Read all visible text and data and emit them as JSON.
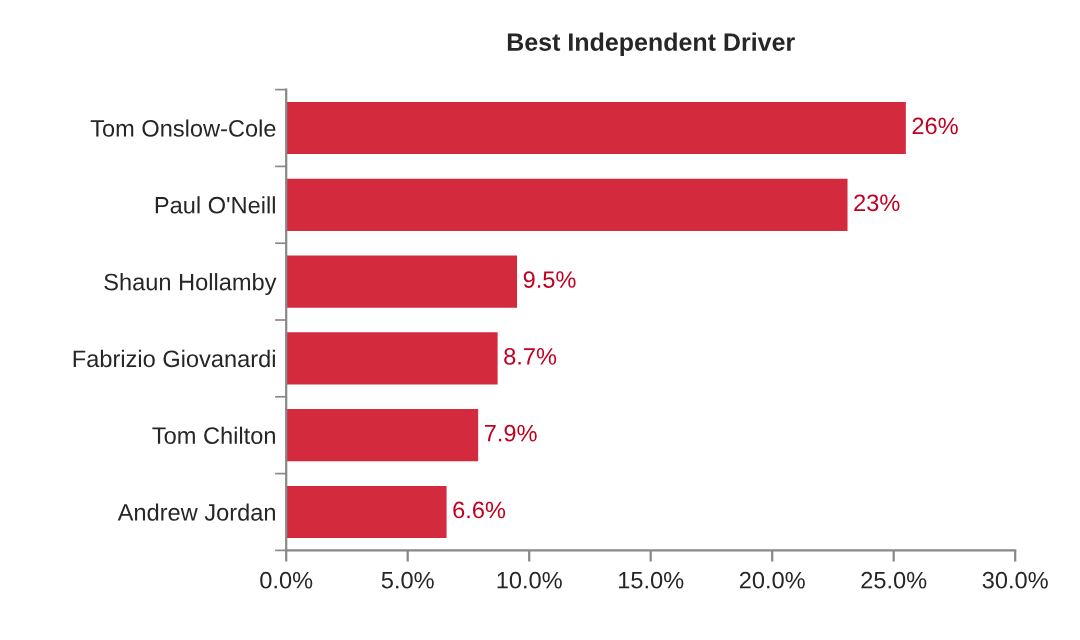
{
  "chart_data": {
    "type": "bar",
    "orientation": "horizontal",
    "title": "Best Independent Driver",
    "categories": [
      "Tom Onslow-Cole",
      "Paul O'Neill",
      "Shaun Hollamby",
      "Fabrizio Giovanardi",
      "Tom Chilton",
      "Andrew Jordan"
    ],
    "values": [
      25.5,
      23.1,
      9.5,
      8.7,
      7.9,
      6.6
    ],
    "value_labels": [
      "26%",
      "23%",
      "9.5%",
      "8.7%",
      "7.9%",
      "6.6%"
    ],
    "color": "#d42a3e",
    "xlim": [
      0,
      30
    ],
    "xticks": [
      {
        "value": 0,
        "label": "0.0%"
      },
      {
        "value": 5,
        "label": "5.0%"
      },
      {
        "value": 10,
        "label": "10.0%"
      },
      {
        "value": 15,
        "label": "15.0%"
      },
      {
        "value": 20,
        "label": "20.0%"
      },
      {
        "value": 25,
        "label": "25.0%"
      },
      {
        "value": 30,
        "label": "30.0%"
      }
    ],
    "grid": false,
    "legend": false
  }
}
